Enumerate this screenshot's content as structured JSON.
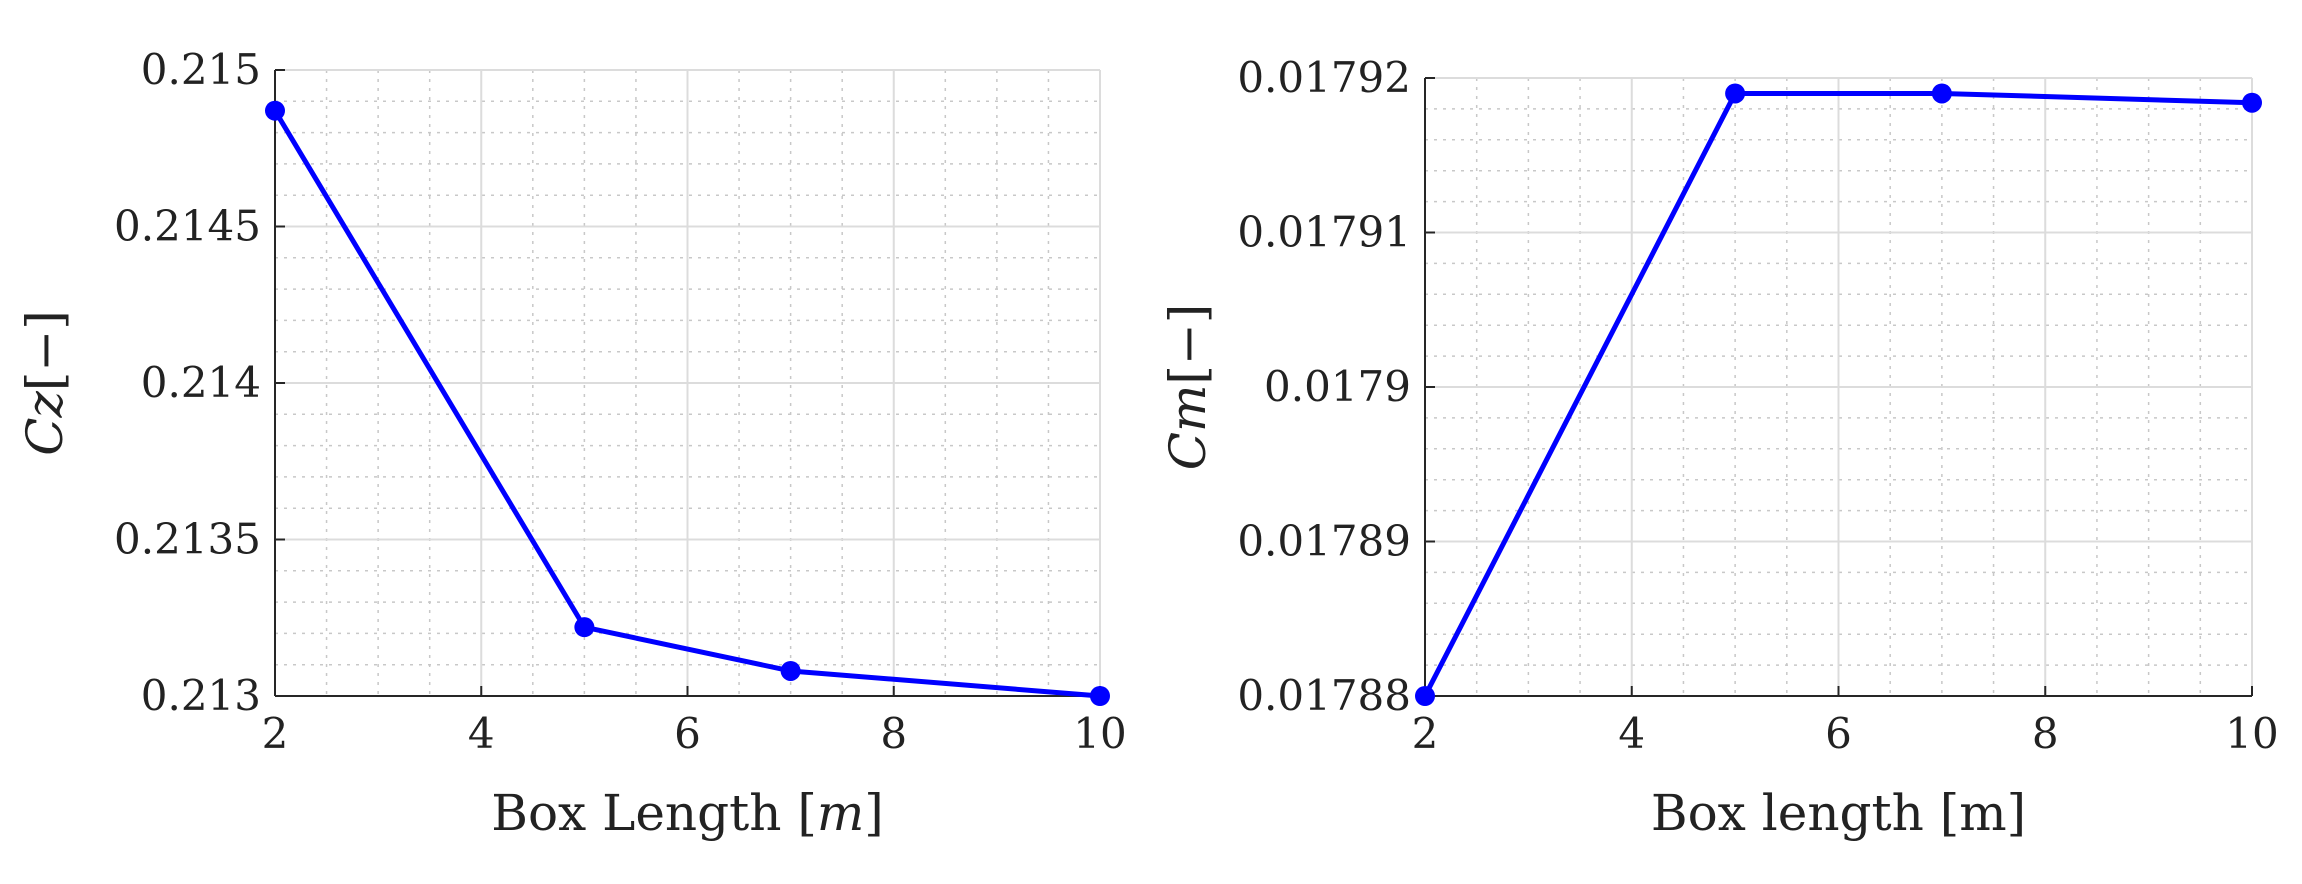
{
  "chart_data": [
    {
      "type": "line",
      "title": "",
      "xlabel": "Box Length [m]",
      "xlabel_parts": {
        "prefix": "Box Length [",
        "var": "m",
        "suffix": "]"
      },
      "ylabel": "Cz[-]",
      "ylabel_parts": {
        "var": "Cz",
        "suffix": "[−]"
      },
      "x": [
        2,
        5,
        7,
        10
      ],
      "series": [
        {
          "values": [
            0.21487,
            0.21322,
            0.21308,
            0.213
          ],
          "color": "#0000ff",
          "marker": "circle"
        }
      ],
      "xlim": [
        2,
        10
      ],
      "ylim": [
        0.213,
        0.215
      ],
      "xticks": [
        2,
        4,
        6,
        8,
        10
      ],
      "xtick_labels": [
        "2",
        "4",
        "6",
        "8",
        "10"
      ],
      "yticks": [
        0.213,
        0.2135,
        0.214,
        0.2145,
        0.215
      ],
      "ytick_labels": [
        "0.213",
        "0.2135",
        "0.214",
        "0.2145",
        "0.215"
      ],
      "grid": true,
      "minor_grid": true
    },
    {
      "type": "line",
      "title": "",
      "xlabel": "Box length [m]",
      "xlabel_parts": {
        "prefix": "Box length [m]",
        "var": "",
        "suffix": ""
      },
      "ylabel": "Cm[-]",
      "ylabel_parts": {
        "var": "Cm",
        "suffix": "[−]"
      },
      "x": [
        2,
        5,
        7,
        10
      ],
      "series": [
        {
          "values": [
            0.01788,
            0.017919,
            0.017919,
            0.0179184
          ],
          "color": "#0000ff",
          "marker": "circle"
        }
      ],
      "xlim": [
        2,
        10
      ],
      "ylim": [
        0.01788,
        0.01792
      ],
      "xticks": [
        2,
        4,
        6,
        8,
        10
      ],
      "xtick_labels": [
        "2",
        "4",
        "6",
        "8",
        "10"
      ],
      "yticks": [
        0.01788,
        0.01789,
        0.0179,
        0.01791,
        0.01792
      ],
      "ytick_labels": [
        "0.01788",
        "0.01789",
        "0.0179",
        "0.01791",
        "0.01792"
      ],
      "grid": true,
      "minor_grid": true
    }
  ]
}
